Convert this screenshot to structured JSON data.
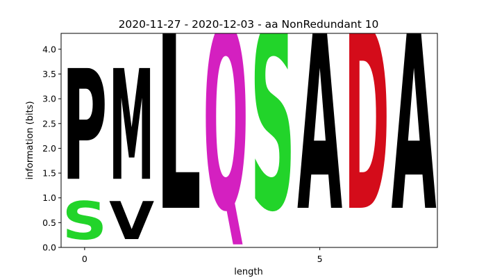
{
  "chart_data": {
    "type": "sequence-logo",
    "title": "2020-11-27 - 2020-12-03 - aa NonRedundant 10",
    "xlabel": "length",
    "ylabel": "information (bits)",
    "xlim": [
      -0.5,
      7.5
    ],
    "ylim": [
      0,
      4.32
    ],
    "xticks": [
      0,
      5
    ],
    "yticks": [
      0.0,
      0.5,
      1.0,
      1.5,
      2.0,
      2.5,
      3.0,
      3.5,
      4.0
    ],
    "positions": [
      {
        "x": 0,
        "stack": [
          {
            "letter": "S",
            "height": 0.9,
            "color": "#22d42a"
          },
          {
            "letter": "P",
            "height": 2.62,
            "color": "#000000"
          }
        ]
      },
      {
        "x": 1,
        "stack": [
          {
            "letter": "V",
            "height": 0.9,
            "color": "#000000"
          },
          {
            "letter": "M",
            "height": 2.62,
            "color": "#000000"
          }
        ]
      },
      {
        "x": 2,
        "stack": [
          {
            "letter": "L",
            "height": 4.32,
            "color": "#000000"
          }
        ]
      },
      {
        "x": 3,
        "stack": [
          {
            "letter": "Q",
            "height": 4.32,
            "color": "#d420c0"
          }
        ]
      },
      {
        "x": 4,
        "stack": [
          {
            "letter": "S",
            "height": 4.32,
            "color": "#22d42a"
          }
        ]
      },
      {
        "x": 5,
        "stack": [
          {
            "letter": "A",
            "height": 4.32,
            "color": "#000000"
          }
        ]
      },
      {
        "x": 6,
        "stack": [
          {
            "letter": "D",
            "height": 4.32,
            "color": "#d40c1a"
          }
        ]
      },
      {
        "x": 7,
        "stack": [
          {
            "letter": "A",
            "height": 4.32,
            "color": "#000000"
          }
        ]
      }
    ]
  }
}
